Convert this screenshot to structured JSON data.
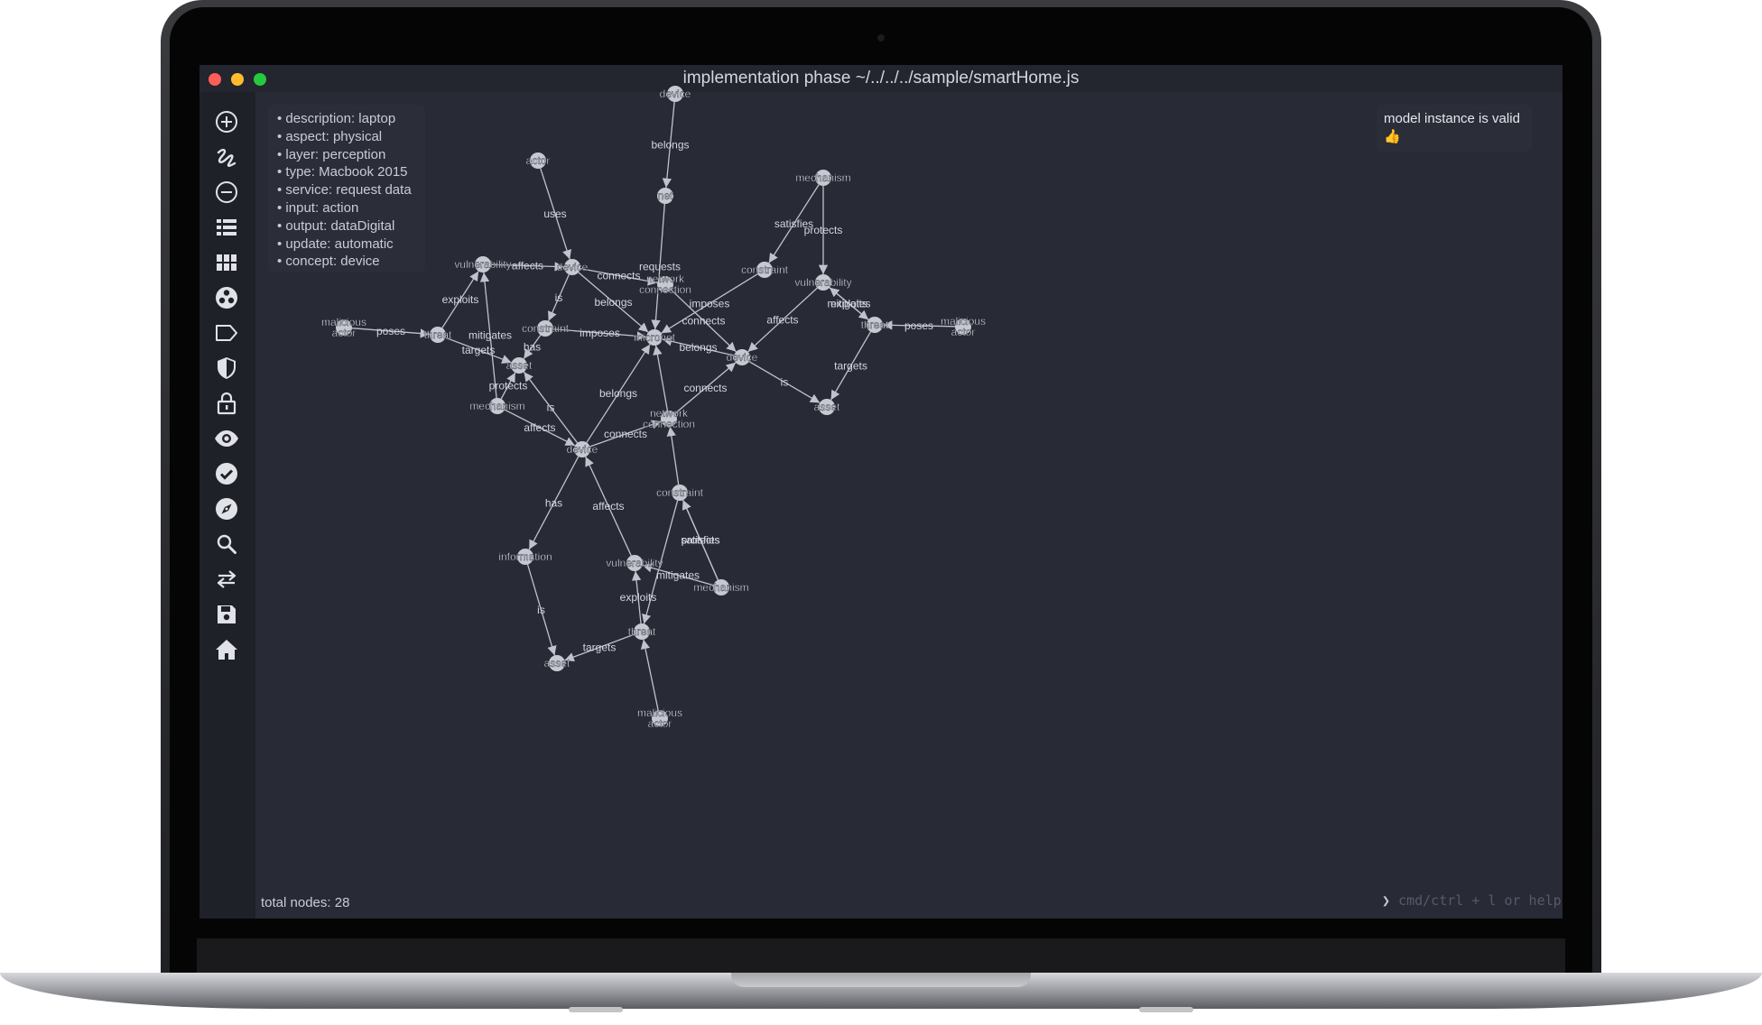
{
  "window": {
    "title": "implementation phase ~/../../../sample/smartHome.js",
    "traffic_lights": [
      "#ff5f56",
      "#ffbd2e",
      "#27c93f"
    ]
  },
  "sidebar": {
    "icons": [
      "add-circle-icon",
      "draw-link-icon",
      "remove-circle-icon",
      "list-icon",
      "grid-icon",
      "cluster-icon",
      "tag-icon",
      "shield-icon",
      "lock-icon",
      "eye-icon",
      "check-circle-icon",
      "compass-icon",
      "search-icon",
      "swap-arrows-icon",
      "save-icon",
      "home-icon"
    ]
  },
  "properties": [
    "description: laptop",
    "aspect: physical",
    "layer: perception",
    "type: Macbook 2015",
    "service: request data",
    "input: action",
    "output: dataDigital",
    "update: automatic",
    "concept: device"
  ],
  "status": {
    "message": "model instance is valid",
    "emoji": "👍"
  },
  "footer": {
    "total_nodes": "total nodes: 28",
    "prompt": "cmd/ctrl + l or help",
    "prompt_chevron": "❯"
  },
  "colors": {
    "background": "#282a36",
    "sidebar": "#1f2129",
    "node": "#c7c9d2",
    "edge": "#c0c3cc",
    "label": "#d4d6de"
  },
  "graph": {
    "nodes": [
      {
        "id": "device_top",
        "label": "device"
      },
      {
        "id": "net",
        "label": "net"
      },
      {
        "id": "actor",
        "label": "actor"
      },
      {
        "id": "mechanism_r",
        "label": "mechanism"
      },
      {
        "id": "vuln_l",
        "label": "vulnerability"
      },
      {
        "id": "device_l",
        "label": "device"
      },
      {
        "id": "netconn_u",
        "label": "network connection"
      },
      {
        "id": "constraint_r",
        "label": "constraint"
      },
      {
        "id": "vuln_r",
        "label": "vulnerability"
      },
      {
        "id": "mal_l",
        "label": "malicious actor"
      },
      {
        "id": "threat_l",
        "label": "threat"
      },
      {
        "id": "constraint_l",
        "label": "constraint"
      },
      {
        "id": "micronet",
        "label": "micronet"
      },
      {
        "id": "threat_r",
        "label": "threat"
      },
      {
        "id": "mal_r",
        "label": "malicious actor"
      },
      {
        "id": "asset_l",
        "label": "asset"
      },
      {
        "id": "device_r",
        "label": "device"
      },
      {
        "id": "mechanism_l",
        "label": "mechanism"
      },
      {
        "id": "asset_r",
        "label": "asset"
      },
      {
        "id": "netconn_l",
        "label": "network connection"
      },
      {
        "id": "device_c",
        "label": "device"
      },
      {
        "id": "constraint_b",
        "label": "constraint"
      },
      {
        "id": "information",
        "label": "information"
      },
      {
        "id": "vuln_b",
        "label": "vulnerability"
      },
      {
        "id": "mechanism_b",
        "label": "mechanism"
      },
      {
        "id": "threat_b",
        "label": "threat"
      },
      {
        "id": "asset_b",
        "label": "asset"
      },
      {
        "id": "mal_b",
        "label": "malicious actor"
      }
    ],
    "edges": [
      {
        "from": "device_top",
        "to": "net",
        "label": "belongs"
      },
      {
        "from": "net",
        "to": "micronet",
        "label": "requests"
      },
      {
        "from": "actor",
        "to": "device_l",
        "label": "uses"
      },
      {
        "from": "vuln_l",
        "to": "device_l",
        "label": "affects"
      },
      {
        "from": "device_l",
        "to": "netconn_u",
        "label": "connects"
      },
      {
        "from": "device_l",
        "to": "micronet",
        "label": "belongs"
      },
      {
        "from": "device_l",
        "to": "constraint_l",
        "label": "is"
      },
      {
        "from": "threat_l",
        "to": "vuln_l",
        "label": "exploits"
      },
      {
        "from": "mal_l",
        "to": "threat_l",
        "label": "poses"
      },
      {
        "from": "threat_l",
        "to": "asset_l",
        "label": "targets"
      },
      {
        "from": "mechanism_l",
        "to": "vuln_l",
        "label": "mitigates"
      },
      {
        "from": "mechanism_l",
        "to": "asset_l",
        "label": "protects"
      },
      {
        "from": "constraint_l",
        "to": "micronet",
        "label": "imposes"
      },
      {
        "from": "constraint_l",
        "to": "asset_l",
        "label": "has"
      },
      {
        "from": "mechanism_r",
        "to": "constraint_r",
        "label": "satisfies"
      },
      {
        "from": "mechanism_r",
        "to": "vuln_r",
        "label": "protects"
      },
      {
        "from": "constraint_r",
        "to": "micronet",
        "label": "imposes"
      },
      {
        "from": "netconn_u",
        "to": "device_r",
        "label": "connects"
      },
      {
        "from": "vuln_r",
        "to": "device_r",
        "label": "affects"
      },
      {
        "from": "threat_r",
        "to": "vuln_r",
        "label": "exploits"
      },
      {
        "from": "vuln_r",
        "to": "threat_r",
        "label": "mitigates"
      },
      {
        "from": "mal_r",
        "to": "threat_r",
        "label": "poses"
      },
      {
        "from": "threat_r",
        "to": "asset_r",
        "label": "targets"
      },
      {
        "from": "device_r",
        "to": "micronet",
        "label": "belongs"
      },
      {
        "from": "device_r",
        "to": "asset_r",
        "label": "is"
      },
      {
        "from": "netconn_l",
        "to": "device_r",
        "label": "connects"
      },
      {
        "from": "device_c",
        "to": "micronet",
        "label": "belongs"
      },
      {
        "from": "device_c",
        "to": "netconn_l",
        "label": "connects"
      },
      {
        "from": "device_c",
        "to": "asset_l",
        "label": "is"
      },
      {
        "from": "mechanism_l",
        "to": "device_c",
        "label": "affects"
      },
      {
        "from": "netconn_l",
        "to": "micronet",
        "label": ""
      },
      {
        "from": "device_c",
        "to": "information",
        "label": "has"
      },
      {
        "from": "vuln_b",
        "to": "device_c",
        "label": "affects"
      },
      {
        "from": "information",
        "to": "asset_b",
        "label": "is"
      },
      {
        "from": "constraint_b",
        "to": "netconn_l",
        "label": ""
      },
      {
        "from": "mechanism_b",
        "to": "constraint_b",
        "label": "satisfies"
      },
      {
        "from": "mechanism_b",
        "to": "vuln_b",
        "label": "mitigates"
      },
      {
        "from": "mechanism_b",
        "to": "constraint_b",
        "label": "protects"
      },
      {
        "from": "threat_b",
        "to": "vuln_b",
        "label": "exploits"
      },
      {
        "from": "constraint_b",
        "to": "threat_b",
        "label": ""
      },
      {
        "from": "threat_b",
        "to": "asset_b",
        "label": "targets"
      },
      {
        "from": "mal_b",
        "to": "threat_b",
        "label": ""
      }
    ]
  }
}
